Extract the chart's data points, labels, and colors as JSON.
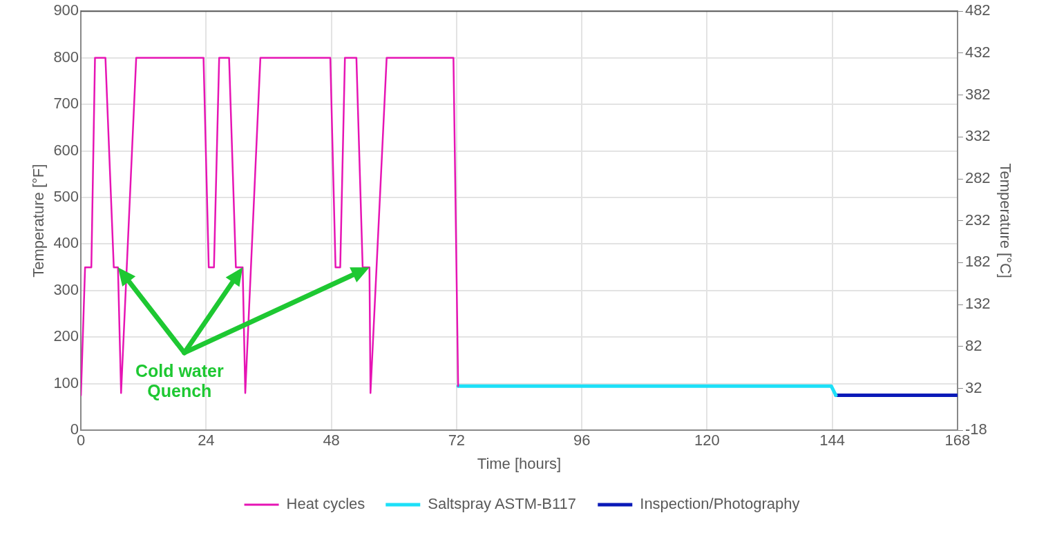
{
  "chart_data": {
    "type": "line",
    "xlabel": "Time [hours]",
    "ylabel": "Temperature [°F]",
    "y2label": "Temperature [°C]",
    "xlim": [
      0,
      168
    ],
    "xticks": [
      0,
      24,
      48,
      72,
      96,
      120,
      144,
      168
    ],
    "ylim": [
      0,
      900
    ],
    "yticks": [
      0,
      100,
      200,
      300,
      400,
      500,
      600,
      700,
      800,
      900
    ],
    "y2lim": [
      -18,
      482
    ],
    "y2ticks": [
      -18,
      32,
      82,
      132,
      182,
      232,
      282,
      332,
      382,
      432,
      482
    ],
    "grid": true,
    "legend": "bottom",
    "marker": "none",
    "line_style": "solid",
    "annotations": [
      "Cold water Quench"
    ],
    "series": [
      {
        "name": "Heat cycles",
        "color": "#e614b4",
        "x": [
          0,
          0.8,
          2,
          2.7,
          4.7,
          6.3,
          7.1,
          7.7,
          10.6,
          23.5,
          24.5,
          25.5,
          26.5,
          28.4,
          29.7,
          31,
          31.5,
          34.4,
          47.8,
          48.8,
          49.7,
          50.6,
          52.8,
          54,
          55.3,
          55.5,
          58.6,
          71.4,
          72.3
        ],
        "values": [
          75,
          350,
          350,
          800,
          800,
          350,
          350,
          80,
          800,
          800,
          350,
          350,
          800,
          800,
          350,
          350,
          80,
          800,
          800,
          350,
          350,
          800,
          800,
          350,
          350,
          80,
          800,
          800,
          95
        ]
      },
      {
        "name": "Saltspray ASTM-B117",
        "color": "#1de0f8",
        "x": [
          72.3,
          143.8,
          144.7
        ],
        "values": [
          95,
          95,
          75
        ]
      },
      {
        "name": "Inspection/Photography",
        "color": "#0a1ab8",
        "x": [
          144.7,
          168
        ],
        "values": [
          75,
          75
        ]
      }
    ]
  }
}
